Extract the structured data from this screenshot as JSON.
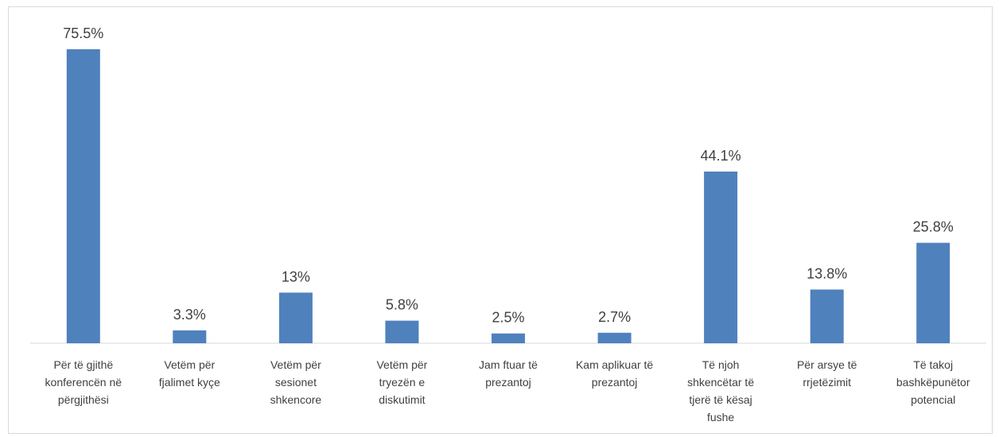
{
  "chart_data": {
    "type": "bar",
    "categories": [
      [
        "Për të gjithë",
        "konferencën në",
        "përgjithësi"
      ],
      [
        "Vetëm për",
        "fjalimet kyçe"
      ],
      [
        "Vetëm për",
        "sesionet",
        "shkencore"
      ],
      [
        "Vetëm për",
        "tryezën e",
        "diskutimit"
      ],
      [
        "Jam ftuar të",
        "prezantoj"
      ],
      [
        "Kam aplikuar të",
        "prezantoj"
      ],
      [
        "Të njoh",
        "shkencëtar të",
        "tjerë të kësaj",
        "fushe"
      ],
      [
        "Për arsye të",
        "rrjetëzimit"
      ],
      [
        "Të takoj",
        "bashkëpunëtor",
        "potencial"
      ]
    ],
    "values": [
      75.5,
      3.3,
      13,
      5.8,
      2.5,
      2.7,
      44.1,
      13.8,
      25.8
    ],
    "value_labels": [
      "75.5%",
      "3.3%",
      "13%",
      "5.8%",
      "2.5%",
      "2.7%",
      "44.1%",
      "13.8%",
      "25.8%"
    ],
    "ylim": [
      0,
      80
    ],
    "grid": false,
    "legend": "none",
    "bar_color": "#4f81bd",
    "title": "",
    "xlabel": "",
    "ylabel": ""
  }
}
